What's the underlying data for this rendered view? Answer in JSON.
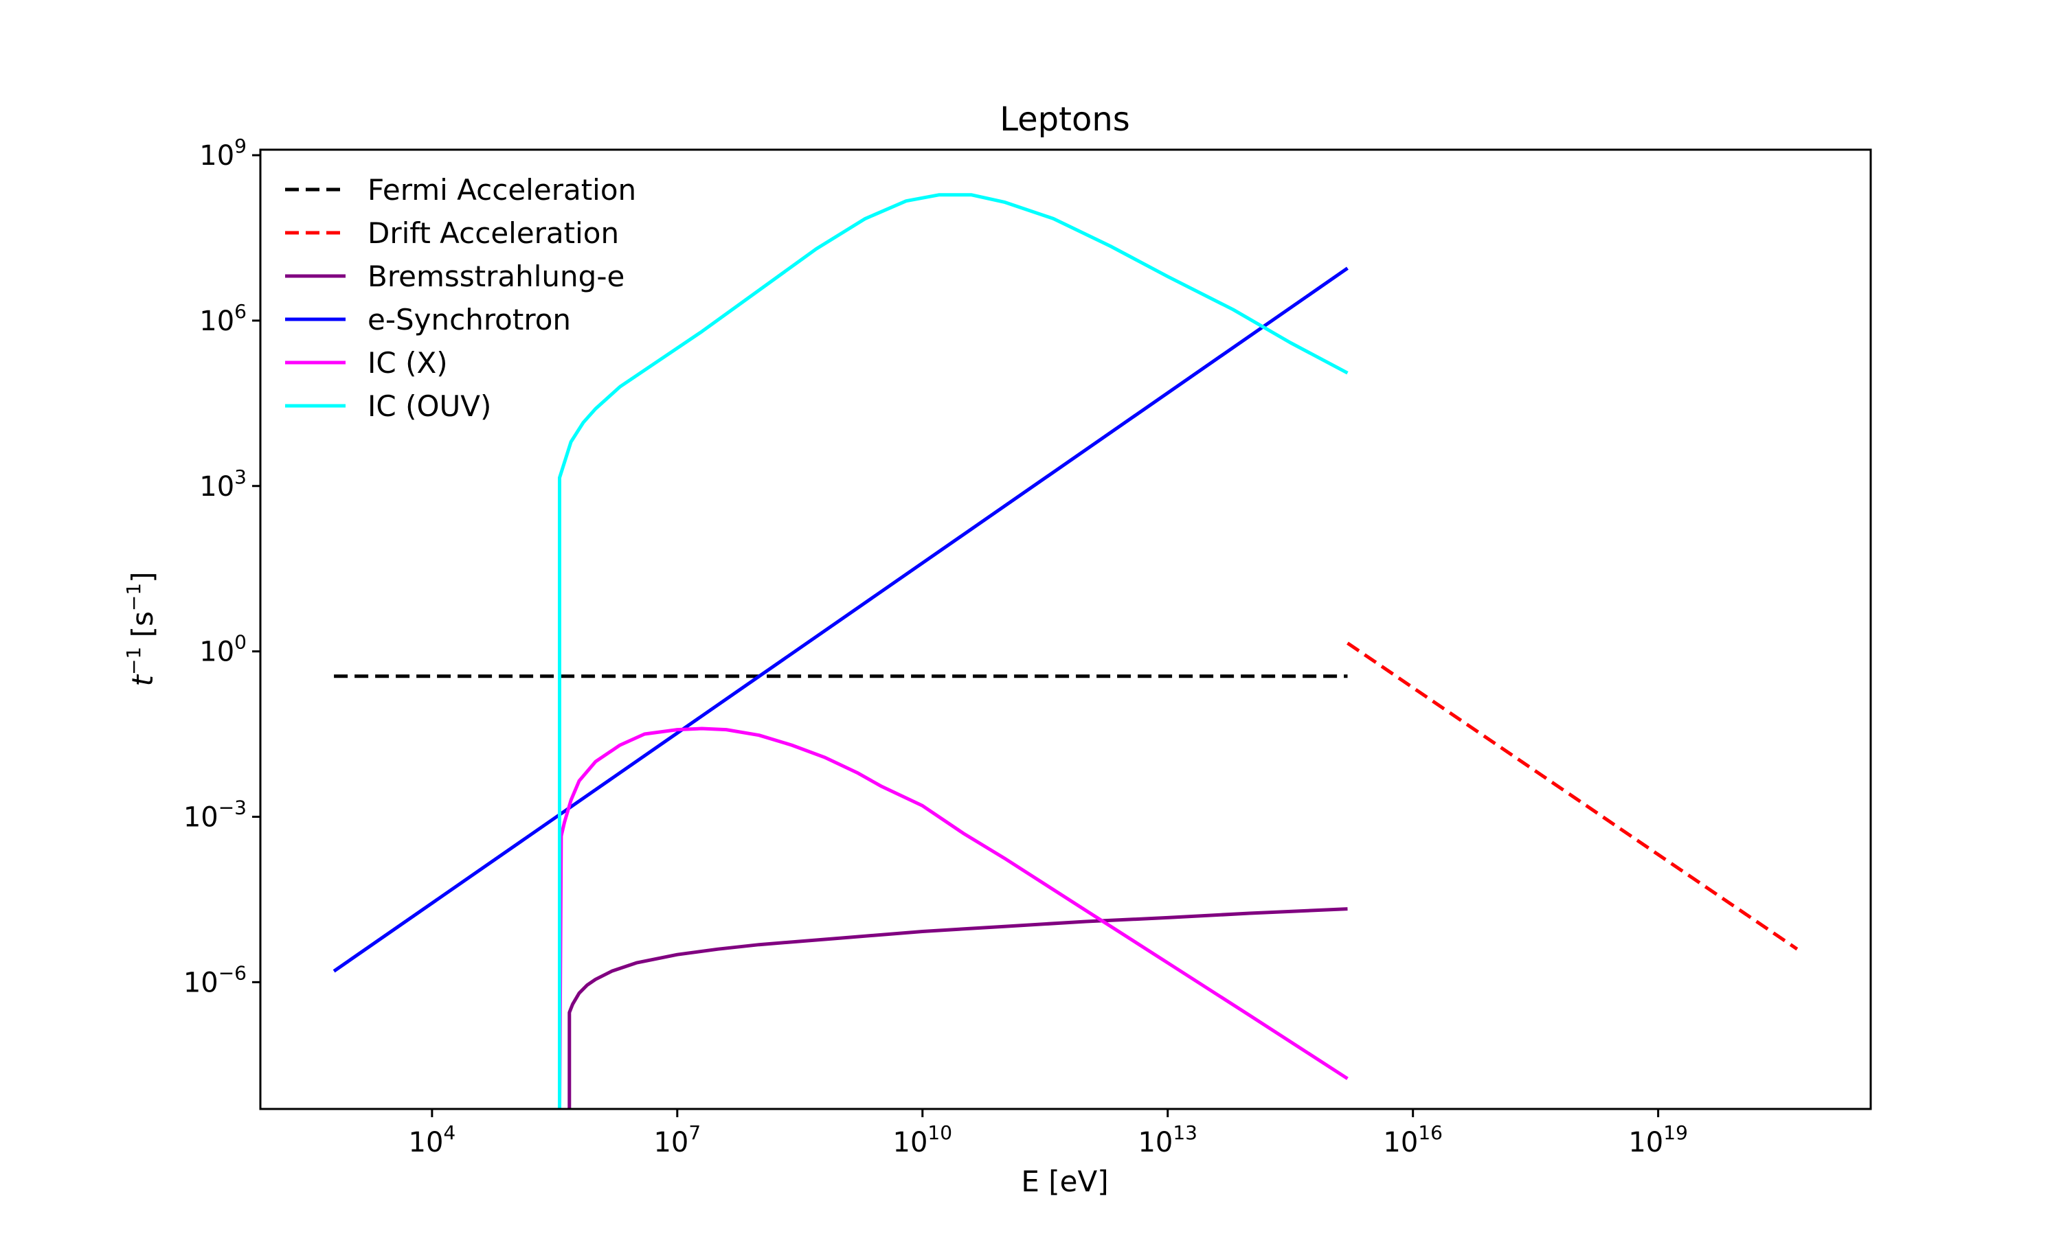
{
  "chart_data": {
    "type": "line",
    "title": "Leptons",
    "xlabel": "E [eV]",
    "ylabel_base": "t",
    "ylabel_base_sup": "−1",
    "ylabel_rest": " [s",
    "ylabel_unit_sup": "−1",
    "ylabel_close": "]",
    "xscale": "log",
    "yscale": "log",
    "xlim_exp": [
      1.9,
      21.6
    ],
    "ylim_exp": [
      -8.3,
      9.1
    ],
    "x_ticks": [
      {
        "base": "10",
        "exp": "4",
        "value": 4
      },
      {
        "base": "10",
        "exp": "7",
        "value": 7
      },
      {
        "base": "10",
        "exp": "10",
        "value": 10
      },
      {
        "base": "10",
        "exp": "13",
        "value": 13
      },
      {
        "base": "10",
        "exp": "16",
        "value": 16
      },
      {
        "base": "10",
        "exp": "19",
        "value": 19
      }
    ],
    "y_ticks": [
      {
        "base": "10",
        "exp": "9",
        "value": 9
      },
      {
        "base": "10",
        "exp": "6",
        "value": 6
      },
      {
        "base": "10",
        "exp": "3",
        "value": 3
      },
      {
        "base": "10",
        "exp": "0",
        "value": 0
      },
      {
        "base": "10",
        "exp": "−3",
        "value": -3
      },
      {
        "base": "10",
        "exp": "−6",
        "value": -6
      }
    ],
    "grid": false,
    "legend_position": "top-left",
    "series": [
      {
        "name": "Fermi Acceleration",
        "color": "#000000",
        "style": "dashed",
        "log10_x": [
          2.8,
          15.2
        ],
        "log10_y": [
          -0.45,
          -0.45
        ]
      },
      {
        "name": "Drift Acceleration",
        "color": "#ff0000",
        "style": "dashed",
        "log10_x": [
          15.2,
          20.7
        ],
        "log10_y": [
          0.15,
          -5.4
        ]
      },
      {
        "name": "Bremsstrahlung-e",
        "color": "#800080",
        "style": "solid",
        "log10_x": [
          5.68,
          5.68,
          5.72,
          5.8,
          5.9,
          6.0,
          6.2,
          6.5,
          7.0,
          7.5,
          8.0,
          9.0,
          10.0,
          11.0,
          12.0,
          13.0,
          14.0,
          15.2
        ],
        "log10_y": [
          -8.3,
          -6.55,
          -6.4,
          -6.2,
          -6.05,
          -5.95,
          -5.8,
          -5.65,
          -5.5,
          -5.4,
          -5.32,
          -5.2,
          -5.08,
          -4.99,
          -4.9,
          -4.83,
          -4.75,
          -4.67
        ]
      },
      {
        "name": "e-Synchrotron",
        "color": "#0000ff",
        "style": "solid",
        "log10_x": [
          2.8,
          15.2
        ],
        "log10_y": [
          -5.8,
          6.95
        ]
      },
      {
        "name": "IC (X)",
        "color": "#ff00ff",
        "style": "solid",
        "log10_x": [
          5.56,
          5.58,
          5.62,
          5.7,
          5.8,
          6.0,
          6.3,
          6.6,
          7.0,
          7.3,
          7.6,
          8.0,
          8.4,
          8.8,
          9.2,
          9.5,
          10.0,
          10.5,
          11.0,
          12.0,
          13.0,
          14.0,
          15.2
        ],
        "log10_y": [
          -8.3,
          -3.35,
          -3.1,
          -2.7,
          -2.35,
          -2.0,
          -1.7,
          -1.5,
          -1.42,
          -1.4,
          -1.42,
          -1.52,
          -1.7,
          -1.92,
          -2.2,
          -2.45,
          -2.8,
          -3.3,
          -3.75,
          -4.7,
          -5.65,
          -6.6,
          -7.75
        ]
      },
      {
        "name": "IC (OUV)",
        "color": "#00ffff",
        "style": "solid",
        "log10_x": [
          5.56,
          5.56,
          5.7,
          5.85,
          6.0,
          6.3,
          6.7,
          7.3,
          8.0,
          8.7,
          9.3,
          9.8,
          10.2,
          10.6,
          11.0,
          11.6,
          12.3,
          13.0,
          13.8,
          14.5,
          15.2
        ],
        "log10_y": [
          -8.3,
          3.15,
          3.8,
          4.15,
          4.4,
          4.8,
          5.2,
          5.8,
          6.55,
          7.3,
          7.85,
          8.17,
          8.28,
          8.28,
          8.15,
          7.85,
          7.35,
          6.8,
          6.2,
          5.6,
          5.05
        ]
      }
    ]
  }
}
